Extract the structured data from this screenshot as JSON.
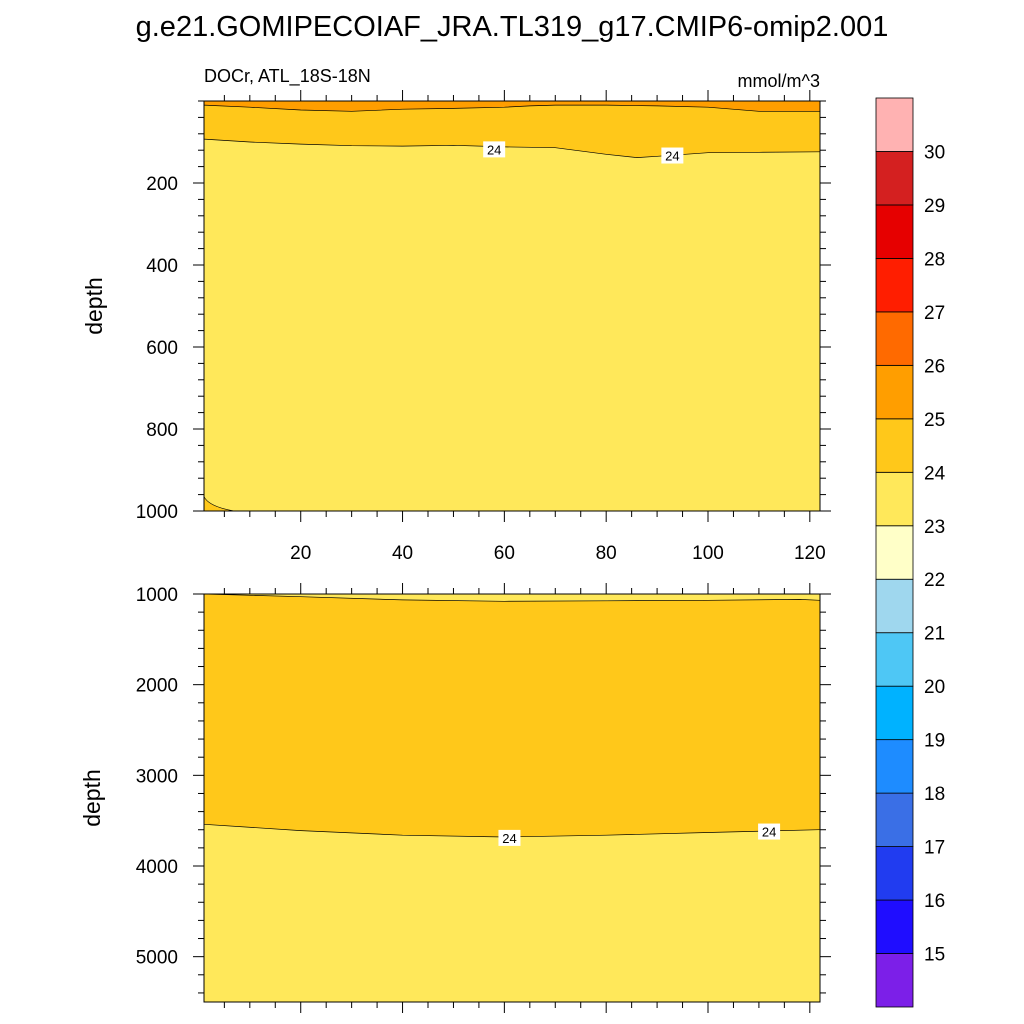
{
  "figure_title": "g.e21.GOMIPECOIAF_JRA.TL319_g17.CMIP6-omip2.001",
  "chart_data": {
    "type": "contour",
    "subtitle_left": "DOCr, ATL_18S-18N",
    "units": "mmol/m^3",
    "x_range": [
      1,
      122
    ],
    "x_ticks": [
      20,
      40,
      60,
      80,
      100,
      120
    ],
    "x_tick_labels": [
      "20",
      "40",
      "60",
      "80",
      "100",
      "120"
    ],
    "colorbar": {
      "levels": [
        15,
        16,
        17,
        18,
        19,
        20,
        21,
        22,
        23,
        24,
        25,
        26,
        27,
        28,
        29,
        30
      ],
      "labels": [
        "15",
        "16",
        "17",
        "18",
        "19",
        "20",
        "21",
        "22",
        "23",
        "24",
        "25",
        "26",
        "27",
        "28",
        "29",
        "30"
      ],
      "colors": [
        "#7c1fe8",
        "#1f0dff",
        "#213cf0",
        "#3a6fe6",
        "#1e8cff",
        "#00b2ff",
        "#4ec7f5",
        "#9fd7ee",
        "#ffffc8",
        "#ffe85a",
        "#ffc81a",
        "#ff9e00",
        "#ff6a00",
        "#ff1e00",
        "#e60000",
        "#d42020",
        "#ffb2b2"
      ]
    },
    "panels": [
      {
        "name": "upper",
        "ylabel": "depth",
        "y_range": [
          0,
          1000
        ],
        "y_ticks": [
          200,
          400,
          600,
          800,
          1000
        ],
        "y_tick_labels": [
          "200",
          "400",
          "600",
          "800",
          "1000"
        ],
        "contour_24_depth": {
          "x": [
            1,
            10,
            20,
            30,
            40,
            50,
            60,
            70,
            80,
            86,
            90,
            100,
            110,
            122
          ],
          "depth": [
            93,
            100,
            105,
            109,
            110,
            108,
            112,
            114,
            130,
            138,
            135,
            126,
            125,
            124
          ]
        },
        "contour_25_depth": {
          "x": [
            1,
            10,
            20,
            30,
            40,
            50,
            60,
            65,
            70,
            80,
            90,
            100,
            110,
            122
          ],
          "depth": [
            10,
            15,
            22,
            25,
            20,
            18,
            15,
            12,
            10,
            10,
            12,
            15,
            25,
            25
          ]
        },
        "deep_below_24": {
          "x": [
            1,
            7
          ],
          "depth": [
            965,
            1000
          ]
        },
        "contour_labels": [
          {
            "text": "24",
            "x": 58,
            "depth": 118
          },
          {
            "text": "24",
            "x": 93,
            "depth": 133
          }
        ]
      },
      {
        "name": "lower",
        "ylabel": "depth",
        "y_range": [
          1000,
          5500
        ],
        "y_ticks": [
          1000,
          2000,
          3000,
          4000,
          5000
        ],
        "y_tick_labels": [
          "1000",
          "2000",
          "3000",
          "4000",
          "5000"
        ],
        "contour_24_upper": {
          "x": [
            1,
            20,
            40,
            60,
            80,
            100,
            118,
            122
          ],
          "depth": [
            1000,
            1030,
            1065,
            1080,
            1075,
            1070,
            1060,
            1070
          ]
        },
        "contour_24_lower": {
          "x": [
            1,
            20,
            40,
            60,
            80,
            100,
            122
          ],
          "depth": [
            3540,
            3610,
            3660,
            3680,
            3660,
            3630,
            3600
          ]
        },
        "contour_labels": [
          {
            "text": "24",
            "x": 61,
            "depth": 3690
          },
          {
            "text": "24",
            "x": 112,
            "depth": 3620
          }
        ]
      }
    ]
  }
}
